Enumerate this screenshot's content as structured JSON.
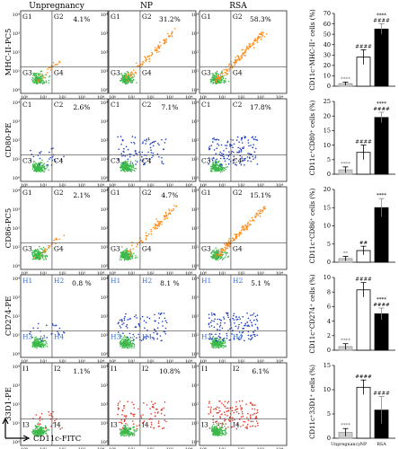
{
  "chart_data": {
    "type": "bar",
    "columns": [
      "Unpregnancy",
      "NP",
      "RSA"
    ],
    "x_axis_label": "CD11c-FITC",
    "rows": [
      {
        "y_axis_label": "MHC-II-PC5",
        "gate_labels": [
          "G1",
          "G2",
          "G3",
          "G4"
        ],
        "percents": [
          "4.1%",
          "31.2%",
          "58.3%"
        ],
        "dot_color": "#ff8c1a",
        "label_color": "#111111",
        "bar_ylabel": "CD11c⁺MHC-II⁺ cells (%)",
        "bar_ylim": [
          0,
          70
        ],
        "bar_ticks": [
          0,
          10,
          20,
          30,
          40,
          50,
          60,
          70
        ],
        "bar_values": [
          2.5,
          28,
          55
        ],
        "bar_errors": [
          1.5,
          7,
          5
        ],
        "significance": [
          [
            "****"
          ],
          [
            "####"
          ],
          [
            "****",
            "####"
          ]
        ]
      },
      {
        "y_axis_label": "CD80-PE",
        "gate_labels": [
          "C1",
          "C2",
          "C3",
          "C4"
        ],
        "percents": [
          "2.6%",
          "7.1%",
          "17.8%"
        ],
        "dot_color": "#1f3fbf",
        "label_color": "#111111",
        "bar_ylabel": "CD11c⁺CD80⁺ cells (%)",
        "bar_ylim": [
          0,
          25
        ],
        "bar_ticks": [
          0,
          5,
          10,
          15,
          20,
          25
        ],
        "bar_values": [
          1.5,
          7.5,
          19.5
        ],
        "bar_errors": [
          1,
          2.5,
          1.8
        ],
        "significance": [
          [
            "****"
          ],
          [
            "####"
          ],
          [
            "****",
            "####"
          ]
        ]
      },
      {
        "y_axis_label": "CD86-PC5",
        "gate_labels": [
          "G1",
          "G2",
          "G3",
          "G4"
        ],
        "percents": [
          "2.1%",
          "4.7%",
          "15.1%"
        ],
        "dot_color": "#ff8c1a",
        "label_color": "#111111",
        "bar_ylabel": "CD11c⁺CD86⁺ cells (%)",
        "bar_ylim": [
          0,
          20
        ],
        "bar_ticks": [
          0,
          5,
          10,
          15,
          20
        ],
        "bar_values": [
          1,
          3.2,
          15
        ],
        "bar_errors": [
          0.6,
          1.2,
          2.5
        ],
        "significance": [
          [
            "**"
          ],
          [
            "##"
          ],
          [
            "****"
          ]
        ]
      },
      {
        "y_axis_label": "CD274-PE",
        "gate_labels": [
          "H1",
          "H2",
          "H3",
          "H4"
        ],
        "percents": [
          "0.8 %",
          "8.1 %",
          "5.1 %"
        ],
        "dot_color": "#1f3fbf",
        "label_color": "#3a6fd8",
        "bar_ylabel": "CD11c⁺CD274⁺ cells (%)",
        "bar_ylim": [
          0,
          10
        ],
        "bar_ticks": [
          0,
          2,
          4,
          6,
          8,
          10
        ],
        "bar_values": [
          0.5,
          8.3,
          5
        ],
        "bar_errors": [
          0.4,
          1,
          0.8
        ],
        "significance": [
          [
            "****"
          ],
          [
            "####"
          ],
          [
            "****",
            "####"
          ]
        ]
      },
      {
        "y_axis_label": "33D1-PE",
        "gate_labels": [
          "I1",
          "I2",
          "I3",
          "I4"
        ],
        "percents": [
          "1.1%",
          "10.8%",
          "6.1%"
        ],
        "dot_color": "#e03a2a",
        "label_color": "#111111",
        "bar_ylabel": "CD11c⁺33D1⁺ cells (%)",
        "bar_ylim": [
          0,
          15
        ],
        "bar_ticks": [
          0,
          5,
          10,
          15
        ],
        "bar_values": [
          1.2,
          10.5,
          5.8
        ],
        "bar_errors": [
          0.8,
          1.5,
          2.8
        ],
        "significance": [
          [
            "****"
          ],
          [
            "####"
          ],
          [
            "####"
          ]
        ]
      }
    ],
    "bar_categories": [
      "Unpregnancy",
      "NP",
      "RSA"
    ],
    "bar_fill": [
      "#cccccc",
      "#ffffff",
      "#000000"
    ],
    "log_ticks": [
      "10⁰",
      "10¹",
      "10²",
      "10³",
      "10⁴"
    ]
  }
}
